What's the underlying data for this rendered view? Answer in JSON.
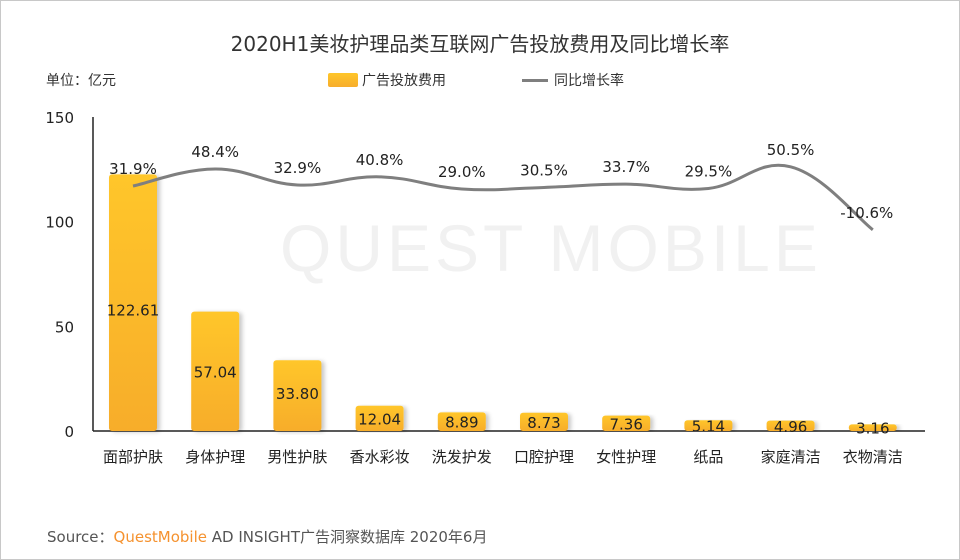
{
  "chart_data": {
    "type": "bar+line",
    "title": "2020H1美妆护理品类互联网广告投放费用及同比增长率",
    "unit_label": "单位：亿元",
    "categories": [
      "面部护肤",
      "身体护理",
      "男性护肤",
      "香水彩妆",
      "洗发护发",
      "口腔护理",
      "女性护理",
      "纸品",
      "家庭清洁",
      "衣物清洁"
    ],
    "series": [
      {
        "name": "广告投放费用",
        "type": "bar",
        "values": [
          122.61,
          57.04,
          33.8,
          12.04,
          8.89,
          8.73,
          7.36,
          5.14,
          4.96,
          3.16
        ],
        "labels": [
          "122.61",
          "57.04",
          "33.80",
          "12.04",
          "8.89",
          "8.73",
          "7.36",
          "5.14",
          "4.96",
          "3.16"
        ]
      },
      {
        "name": "同比增长率",
        "type": "line",
        "unit": "%",
        "values": [
          31.9,
          48.4,
          32.9,
          40.8,
          29.0,
          30.5,
          33.7,
          29.5,
          50.5,
          -10.6
        ],
        "labels": [
          "31.9%",
          "48.4%",
          "32.9%",
          "40.8%",
          "29.0%",
          "30.5%",
          "33.7%",
          "29.5%",
          "50.5%",
          "-10.6%"
        ]
      }
    ],
    "yticks": [
      "0",
      "50",
      "100",
      "150"
    ],
    "ylim": [
      0,
      150
    ],
    "grid": false,
    "legend": "top-center",
    "colors": {
      "bar_top": "#ffc629",
      "bar_bottom": "#f7ad2c",
      "line": "#7f7f7f"
    }
  },
  "watermark": "QUEST MOBILE",
  "source": {
    "prefix": "Source：",
    "brand": "QuestMobile",
    "rest": " AD INSIGHT广告洞察数据库 2020年6月"
  }
}
